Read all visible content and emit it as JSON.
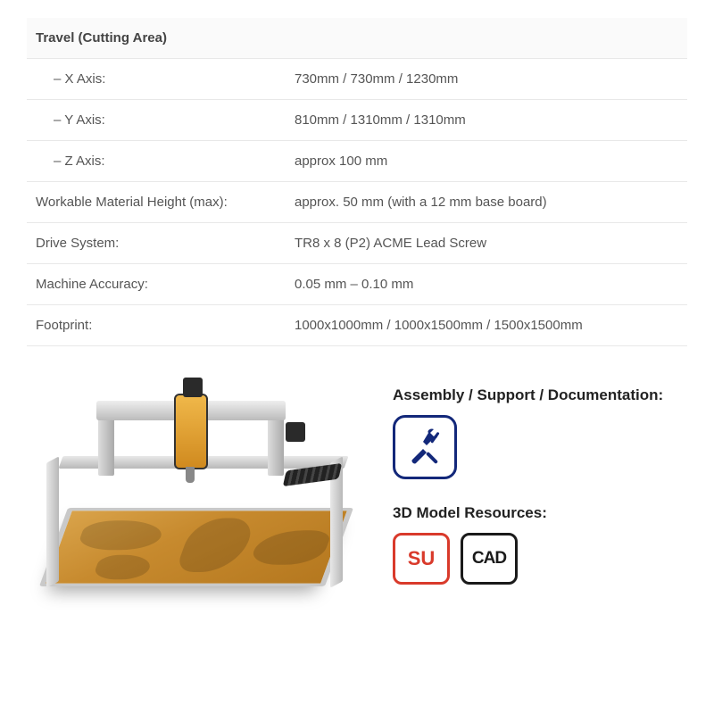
{
  "specs": {
    "header": "Travel (Cutting Area)",
    "rows": [
      {
        "label": "– X Axis:",
        "value": "730mm / 730mm / 1230mm",
        "indent": true
      },
      {
        "label": "– Y Axis:",
        "value": "810mm / 1310mm / 1310mm",
        "indent": true
      },
      {
        "label": "– Z Axis:",
        "value": "approx 100 mm",
        "indent": true
      },
      {
        "label": "Workable Material Height (max):",
        "value": "approx. 50 mm (with a 12 mm base board)"
      },
      {
        "label": "Drive System:",
        "value": "TR8 x 8 (P2) ACME Lead Screw"
      },
      {
        "label": "Machine Accuracy:",
        "value": "0.05 mm – 0.10 mm"
      },
      {
        "label": "Footprint:",
        "value": "1000x1000mm / 1000x1500mm / 1500x1500mm"
      }
    ]
  },
  "resources": {
    "assembly_title": "Assembly / Support / Documentation:",
    "model_title": "3D Model Resources:",
    "su_label": "SU",
    "cad_label": "CAD"
  },
  "colors": {
    "tool_icon_border": "#13287a",
    "su_color": "#d93a2b",
    "cad_color": "#1a1a1a"
  }
}
